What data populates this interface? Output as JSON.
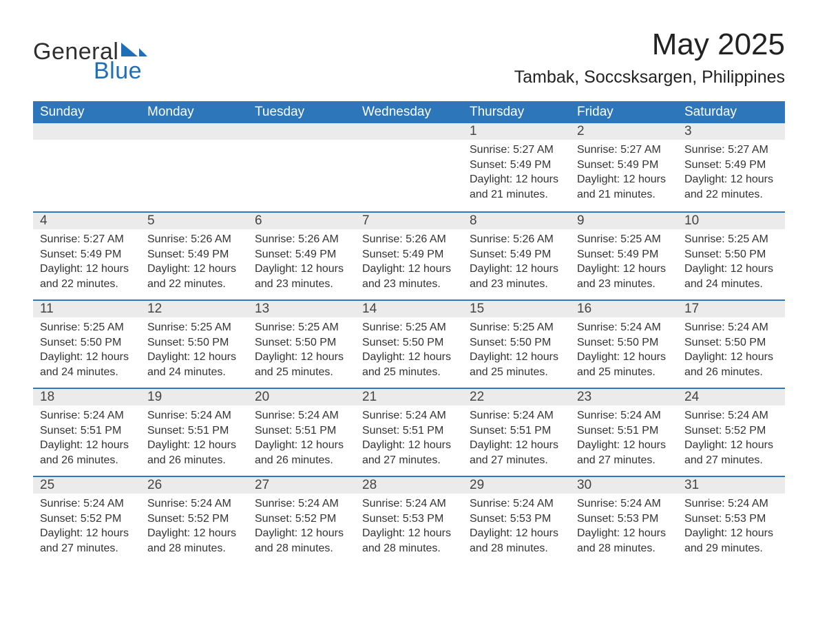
{
  "colors": {
    "header_bg": "#2d76ba",
    "row_divider": "#2d76ba",
    "daynum_bg": "#ebebeb",
    "logo_blue": "#1e6fb8",
    "text": "#333333",
    "background": "#ffffff"
  },
  "logo": {
    "word1": "General",
    "word2": "Blue"
  },
  "title": "May 2025",
  "location": "Tambak, Soccsksargen, Philippines",
  "weekdays": [
    "Sunday",
    "Monday",
    "Tuesday",
    "Wednesday",
    "Thursday",
    "Friday",
    "Saturday"
  ],
  "weeks": [
    [
      {
        "blank": true
      },
      {
        "blank": true
      },
      {
        "blank": true
      },
      {
        "blank": true
      },
      {
        "num": "1",
        "sunrise": "Sunrise: 5:27 AM",
        "sunset": "Sunset: 5:49 PM",
        "dl1": "Daylight: 12 hours",
        "dl2": "and 21 minutes."
      },
      {
        "num": "2",
        "sunrise": "Sunrise: 5:27 AM",
        "sunset": "Sunset: 5:49 PM",
        "dl1": "Daylight: 12 hours",
        "dl2": "and 21 minutes."
      },
      {
        "num": "3",
        "sunrise": "Sunrise: 5:27 AM",
        "sunset": "Sunset: 5:49 PM",
        "dl1": "Daylight: 12 hours",
        "dl2": "and 22 minutes."
      }
    ],
    [
      {
        "num": "4",
        "sunrise": "Sunrise: 5:27 AM",
        "sunset": "Sunset: 5:49 PM",
        "dl1": "Daylight: 12 hours",
        "dl2": "and 22 minutes."
      },
      {
        "num": "5",
        "sunrise": "Sunrise: 5:26 AM",
        "sunset": "Sunset: 5:49 PM",
        "dl1": "Daylight: 12 hours",
        "dl2": "and 22 minutes."
      },
      {
        "num": "6",
        "sunrise": "Sunrise: 5:26 AM",
        "sunset": "Sunset: 5:49 PM",
        "dl1": "Daylight: 12 hours",
        "dl2": "and 23 minutes."
      },
      {
        "num": "7",
        "sunrise": "Sunrise: 5:26 AM",
        "sunset": "Sunset: 5:49 PM",
        "dl1": "Daylight: 12 hours",
        "dl2": "and 23 minutes."
      },
      {
        "num": "8",
        "sunrise": "Sunrise: 5:26 AM",
        "sunset": "Sunset: 5:49 PM",
        "dl1": "Daylight: 12 hours",
        "dl2": "and 23 minutes."
      },
      {
        "num": "9",
        "sunrise": "Sunrise: 5:25 AM",
        "sunset": "Sunset: 5:49 PM",
        "dl1": "Daylight: 12 hours",
        "dl2": "and 23 minutes."
      },
      {
        "num": "10",
        "sunrise": "Sunrise: 5:25 AM",
        "sunset": "Sunset: 5:50 PM",
        "dl1": "Daylight: 12 hours",
        "dl2": "and 24 minutes."
      }
    ],
    [
      {
        "num": "11",
        "sunrise": "Sunrise: 5:25 AM",
        "sunset": "Sunset: 5:50 PM",
        "dl1": "Daylight: 12 hours",
        "dl2": "and 24 minutes."
      },
      {
        "num": "12",
        "sunrise": "Sunrise: 5:25 AM",
        "sunset": "Sunset: 5:50 PM",
        "dl1": "Daylight: 12 hours",
        "dl2": "and 24 minutes."
      },
      {
        "num": "13",
        "sunrise": "Sunrise: 5:25 AM",
        "sunset": "Sunset: 5:50 PM",
        "dl1": "Daylight: 12 hours",
        "dl2": "and 25 minutes."
      },
      {
        "num": "14",
        "sunrise": "Sunrise: 5:25 AM",
        "sunset": "Sunset: 5:50 PM",
        "dl1": "Daylight: 12 hours",
        "dl2": "and 25 minutes."
      },
      {
        "num": "15",
        "sunrise": "Sunrise: 5:25 AM",
        "sunset": "Sunset: 5:50 PM",
        "dl1": "Daylight: 12 hours",
        "dl2": "and 25 minutes."
      },
      {
        "num": "16",
        "sunrise": "Sunrise: 5:24 AM",
        "sunset": "Sunset: 5:50 PM",
        "dl1": "Daylight: 12 hours",
        "dl2": "and 25 minutes."
      },
      {
        "num": "17",
        "sunrise": "Sunrise: 5:24 AM",
        "sunset": "Sunset: 5:50 PM",
        "dl1": "Daylight: 12 hours",
        "dl2": "and 26 minutes."
      }
    ],
    [
      {
        "num": "18",
        "sunrise": "Sunrise: 5:24 AM",
        "sunset": "Sunset: 5:51 PM",
        "dl1": "Daylight: 12 hours",
        "dl2": "and 26 minutes."
      },
      {
        "num": "19",
        "sunrise": "Sunrise: 5:24 AM",
        "sunset": "Sunset: 5:51 PM",
        "dl1": "Daylight: 12 hours",
        "dl2": "and 26 minutes."
      },
      {
        "num": "20",
        "sunrise": "Sunrise: 5:24 AM",
        "sunset": "Sunset: 5:51 PM",
        "dl1": "Daylight: 12 hours",
        "dl2": "and 26 minutes."
      },
      {
        "num": "21",
        "sunrise": "Sunrise: 5:24 AM",
        "sunset": "Sunset: 5:51 PM",
        "dl1": "Daylight: 12 hours",
        "dl2": "and 27 minutes."
      },
      {
        "num": "22",
        "sunrise": "Sunrise: 5:24 AM",
        "sunset": "Sunset: 5:51 PM",
        "dl1": "Daylight: 12 hours",
        "dl2": "and 27 minutes."
      },
      {
        "num": "23",
        "sunrise": "Sunrise: 5:24 AM",
        "sunset": "Sunset: 5:51 PM",
        "dl1": "Daylight: 12 hours",
        "dl2": "and 27 minutes."
      },
      {
        "num": "24",
        "sunrise": "Sunrise: 5:24 AM",
        "sunset": "Sunset: 5:52 PM",
        "dl1": "Daylight: 12 hours",
        "dl2": "and 27 minutes."
      }
    ],
    [
      {
        "num": "25",
        "sunrise": "Sunrise: 5:24 AM",
        "sunset": "Sunset: 5:52 PM",
        "dl1": "Daylight: 12 hours",
        "dl2": "and 27 minutes."
      },
      {
        "num": "26",
        "sunrise": "Sunrise: 5:24 AM",
        "sunset": "Sunset: 5:52 PM",
        "dl1": "Daylight: 12 hours",
        "dl2": "and 28 minutes."
      },
      {
        "num": "27",
        "sunrise": "Sunrise: 5:24 AM",
        "sunset": "Sunset: 5:52 PM",
        "dl1": "Daylight: 12 hours",
        "dl2": "and 28 minutes."
      },
      {
        "num": "28",
        "sunrise": "Sunrise: 5:24 AM",
        "sunset": "Sunset: 5:53 PM",
        "dl1": "Daylight: 12 hours",
        "dl2": "and 28 minutes."
      },
      {
        "num": "29",
        "sunrise": "Sunrise: 5:24 AM",
        "sunset": "Sunset: 5:53 PM",
        "dl1": "Daylight: 12 hours",
        "dl2": "and 28 minutes."
      },
      {
        "num": "30",
        "sunrise": "Sunrise: 5:24 AM",
        "sunset": "Sunset: 5:53 PM",
        "dl1": "Daylight: 12 hours",
        "dl2": "and 28 minutes."
      },
      {
        "num": "31",
        "sunrise": "Sunrise: 5:24 AM",
        "sunset": "Sunset: 5:53 PM",
        "dl1": "Daylight: 12 hours",
        "dl2": "and 29 minutes."
      }
    ]
  ]
}
